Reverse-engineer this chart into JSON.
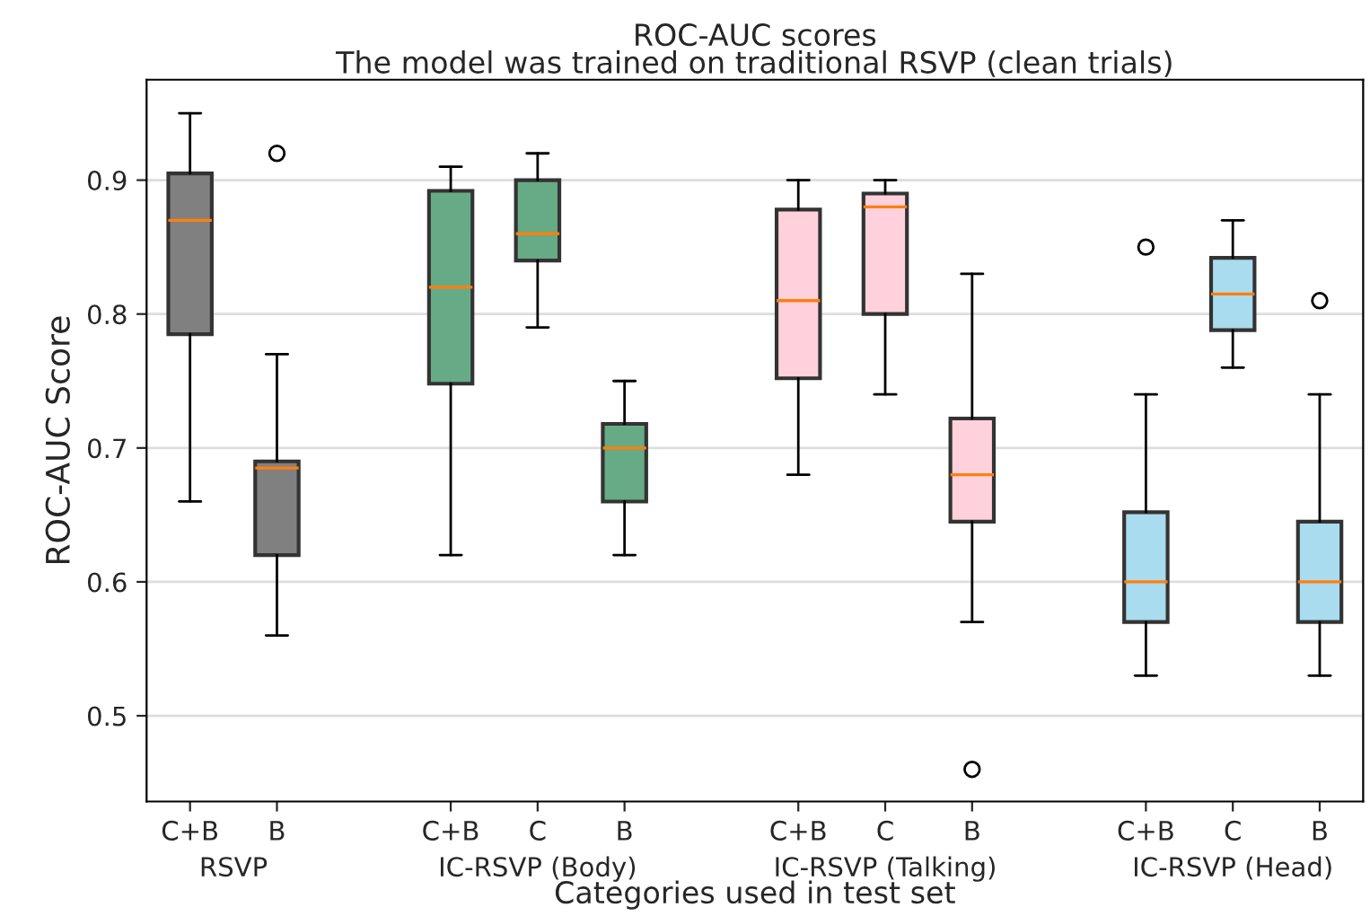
{
  "chart_data": {
    "type": "box",
    "title": "ROC-AUC scores",
    "subtitle": "The model was trained on traditional RSVP (clean trials)",
    "xlabel": "Categories used in test set",
    "ylabel": "ROC-AUC Score",
    "categories": [
      "C+B",
      "B",
      null,
      "C+B",
      "C",
      "B",
      null,
      "C+B",
      "C",
      "B",
      null,
      "C+B",
      "C",
      "B"
    ],
    "colors": [
      "#808080",
      "#808080",
      null,
      "#66ab86",
      "#66ab86",
      "#66ab86",
      null,
      "#ffd1dc",
      "#ffd1dc",
      "#ffd1dc",
      null,
      "#a8dcee",
      "#a8dcee",
      "#a8dcee"
    ],
    "boxes": [
      {
        "low": 0.66,
        "q1": 0.785,
        "median": 0.87,
        "q3": 0.905,
        "high": 0.95
      },
      {
        "low": 0.56,
        "q1": 0.62,
        "median": 0.685,
        "q3": 0.69,
        "high": 0.77,
        "outliers": [
          0.92
        ]
      },
      null,
      {
        "low": 0.62,
        "q1": 0.748,
        "median": 0.82,
        "q3": 0.892,
        "high": 0.91
      },
      {
        "low": 0.79,
        "q1": 0.84,
        "median": 0.86,
        "q3": 0.9,
        "high": 0.92
      },
      {
        "low": 0.62,
        "q1": 0.66,
        "median": 0.7,
        "q3": 0.718,
        "high": 0.75
      },
      null,
      {
        "low": 0.68,
        "q1": 0.752,
        "median": 0.81,
        "q3": 0.878,
        "high": 0.9
      },
      {
        "low": 0.74,
        "q1": 0.8,
        "median": 0.88,
        "q3": 0.89,
        "high": 0.9
      },
      {
        "low": 0.57,
        "q1": 0.645,
        "median": 0.68,
        "q3": 0.722,
        "high": 0.83,
        "outliers": [
          0.46
        ]
      },
      null,
      {
        "low": 0.53,
        "q1": 0.57,
        "median": 0.6,
        "q3": 0.652,
        "high": 0.74,
        "outliers": [
          0.85
        ]
      },
      {
        "low": 0.76,
        "q1": 0.788,
        "median": 0.815,
        "q3": 0.842,
        "high": 0.87
      },
      {
        "low": 0.53,
        "q1": 0.57,
        "median": 0.6,
        "q3": 0.645,
        "high": 0.74,
        "outliers": [
          0.81
        ]
      }
    ],
    "annotations": [
      "RSVP",
      "IC-RSVP (Body)",
      "IC-RSVP (Talking)",
      "IC-RSVP (Head)"
    ],
    "ylim": [
      0.436,
      0.975
    ],
    "yticks": [
      0.5,
      0.6,
      0.7,
      0.8,
      0.9
    ],
    "grid": "y"
  }
}
